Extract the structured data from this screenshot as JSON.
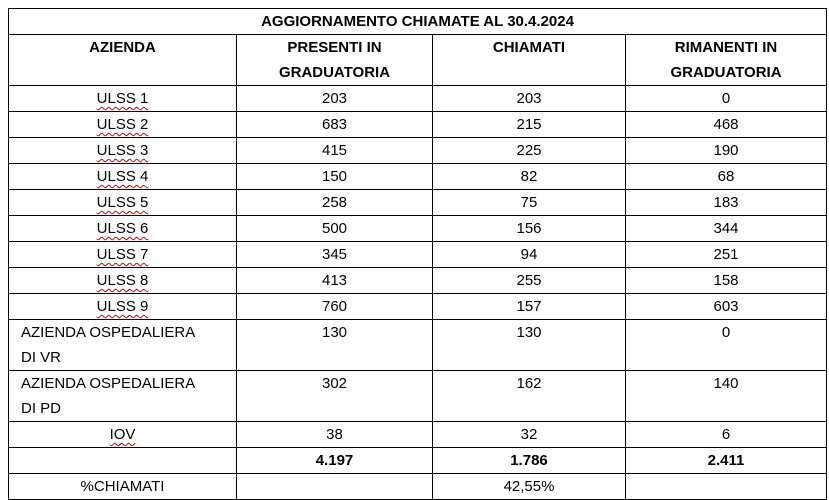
{
  "title": "AGGIORNAMENTO CHIAMATE AL 30.4.2024",
  "table": {
    "header": [
      "AZIENDA",
      "PRESENTI IN GRADUATORIA",
      "CHIAMATI",
      "RIMANENTI IN GRADUATORIA"
    ],
    "rows": [
      [
        "ULSS 1",
        "203",
        "203",
        "0"
      ],
      [
        "ULSS 2",
        "683",
        "215",
        "468"
      ],
      [
        "ULSS 3",
        "415",
        "225",
        "190"
      ],
      [
        "ULSS 4",
        "150",
        "82",
        "68"
      ],
      [
        "ULSS 5",
        "258",
        "75",
        "183"
      ],
      [
        "ULSS 6",
        "500",
        "156",
        "344"
      ],
      [
        "ULSS 7",
        "345",
        "94",
        "251"
      ],
      [
        "ULSS 8",
        "413",
        "255",
        "158"
      ],
      [
        "ULSS 9",
        "760",
        "157",
        "603"
      ],
      [
        "AZIENDA OSPEDALIERA DI VR",
        "130",
        "130",
        "0"
      ],
      [
        "AZIENDA OSPEDALIERA DI PD",
        "302",
        "162",
        "140"
      ],
      [
        "IOV",
        "38",
        "32",
        "6"
      ]
    ],
    "totals": [
      "4.197",
      "1.786",
      "2.411"
    ],
    "percent": {
      "label": "%CHIAMATI",
      "value": "42,55%"
    }
  }
}
